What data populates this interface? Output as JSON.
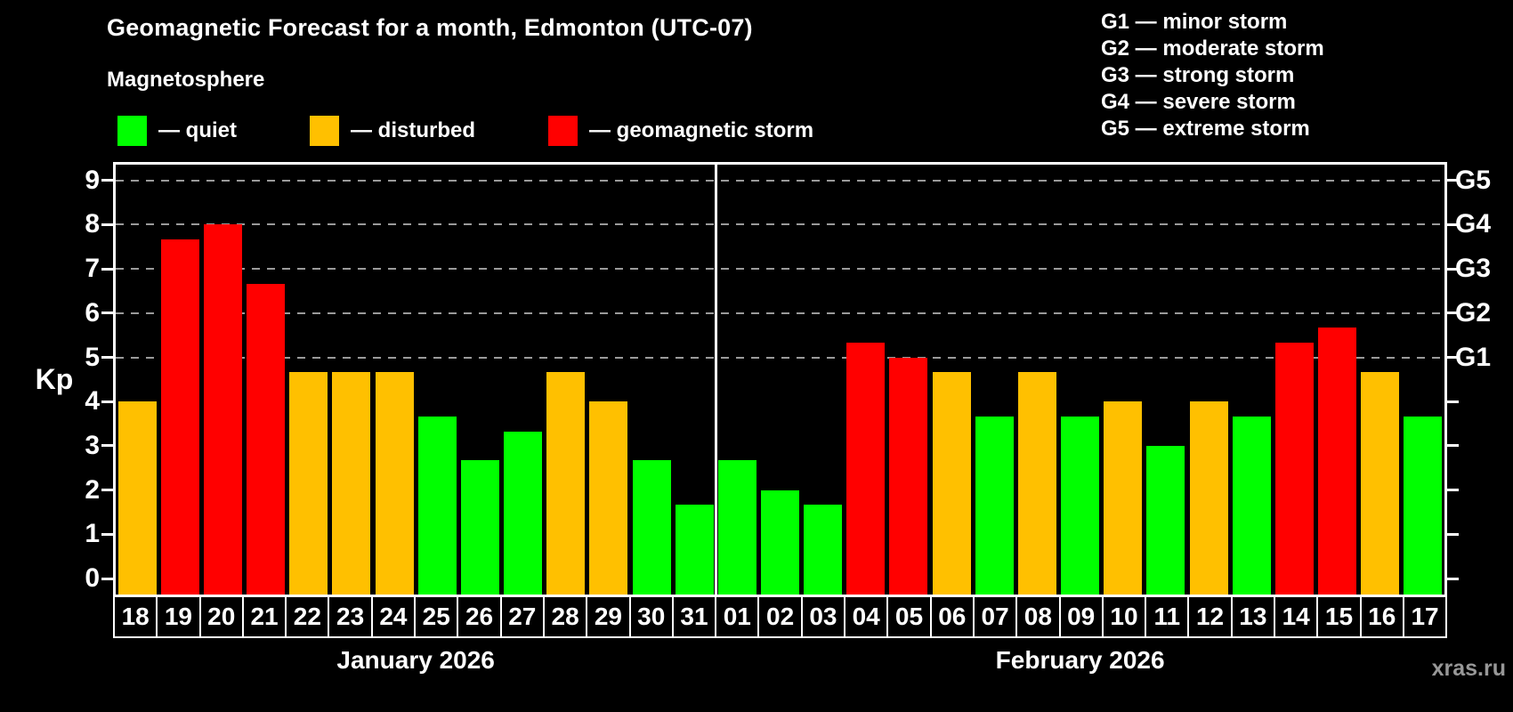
{
  "title": "Geomagnetic Forecast for a month, Edmonton (UTC-07)",
  "subtitle": "Magnetosphere",
  "legend": {
    "items": [
      {
        "label": "— quiet",
        "status": "quiet"
      },
      {
        "label": "— disturbed",
        "status": "disturbed"
      },
      {
        "label": "— geomagnetic storm",
        "status": "storm"
      }
    ]
  },
  "g_legend": [
    "G1 — minor storm",
    "G2 — moderate storm",
    "G3 — strong storm",
    "G4 — severe storm",
    "G5 — extreme storm"
  ],
  "axis": {
    "ylabel": "Kp",
    "yticks": [
      "0",
      "1",
      "2",
      "3",
      "4",
      "5",
      "6",
      "7",
      "8",
      "9"
    ],
    "right_labels": [
      {
        "label": "G1",
        "kp": 5
      },
      {
        "label": "G2",
        "kp": 6
      },
      {
        "label": "G3",
        "kp": 7
      },
      {
        "label": "G4",
        "kp": 8
      },
      {
        "label": "G5",
        "kp": 9
      }
    ],
    "gridlines_kp": [
      5,
      6,
      7,
      8,
      9
    ]
  },
  "colors": {
    "quiet": "#00FF00",
    "disturbed": "#FFC000",
    "storm": "#FF0000",
    "gridline": "#9A9A9A",
    "axis": "#FFFFFF",
    "background": "#000000",
    "watermark_text": "#979797"
  },
  "watermark": "xras.ru",
  "chart_data": {
    "type": "bar",
    "title": "Geomagnetic Forecast for a month, Edmonton (UTC-07)",
    "ylabel": "Kp",
    "ylim": [
      0,
      9
    ],
    "grid": "dashed horizontal lines at Kp 5-9 (G1-G5 levels)",
    "legend_position": "top-left (status colors), top-right (G storm scale)",
    "months": [
      {
        "label": "January 2026",
        "days": [
          {
            "day": "18",
            "kp": 4.0,
            "status": "disturbed"
          },
          {
            "day": "19",
            "kp": 7.67,
            "status": "storm"
          },
          {
            "day": "20",
            "kp": 8.0,
            "status": "storm"
          },
          {
            "day": "21",
            "kp": 6.67,
            "status": "storm"
          },
          {
            "day": "22",
            "kp": 4.67,
            "status": "disturbed"
          },
          {
            "day": "23",
            "kp": 4.67,
            "status": "disturbed"
          },
          {
            "day": "24",
            "kp": 4.67,
            "status": "disturbed"
          },
          {
            "day": "25",
            "kp": 3.67,
            "status": "quiet"
          },
          {
            "day": "26",
            "kp": 2.67,
            "status": "quiet"
          },
          {
            "day": "27",
            "kp": 3.33,
            "status": "quiet"
          },
          {
            "day": "28",
            "kp": 4.67,
            "status": "disturbed"
          },
          {
            "day": "29",
            "kp": 4.0,
            "status": "disturbed"
          },
          {
            "day": "30",
            "kp": 2.67,
            "status": "quiet"
          },
          {
            "day": "31",
            "kp": 1.67,
            "status": "quiet"
          }
        ]
      },
      {
        "label": "February 2026",
        "days": [
          {
            "day": "01",
            "kp": 2.67,
            "status": "quiet"
          },
          {
            "day": "02",
            "kp": 2.0,
            "status": "quiet"
          },
          {
            "day": "03",
            "kp": 1.67,
            "status": "quiet"
          },
          {
            "day": "04",
            "kp": 5.33,
            "status": "storm"
          },
          {
            "day": "05",
            "kp": 5.0,
            "status": "storm"
          },
          {
            "day": "06",
            "kp": 4.67,
            "status": "disturbed"
          },
          {
            "day": "07",
            "kp": 3.67,
            "status": "quiet"
          },
          {
            "day": "08",
            "kp": 4.67,
            "status": "disturbed"
          },
          {
            "day": "09",
            "kp": 3.67,
            "status": "quiet"
          },
          {
            "day": "10",
            "kp": 4.0,
            "status": "disturbed"
          },
          {
            "day": "11",
            "kp": 3.0,
            "status": "quiet"
          },
          {
            "day": "12",
            "kp": 4.0,
            "status": "disturbed"
          },
          {
            "day": "13",
            "kp": 3.67,
            "status": "quiet"
          },
          {
            "day": "14",
            "kp": 5.33,
            "status": "storm"
          },
          {
            "day": "15",
            "kp": 5.67,
            "status": "storm"
          },
          {
            "day": "16",
            "kp": 4.67,
            "status": "disturbed"
          },
          {
            "day": "17",
            "kp": 3.67,
            "status": "quiet"
          }
        ]
      }
    ]
  }
}
